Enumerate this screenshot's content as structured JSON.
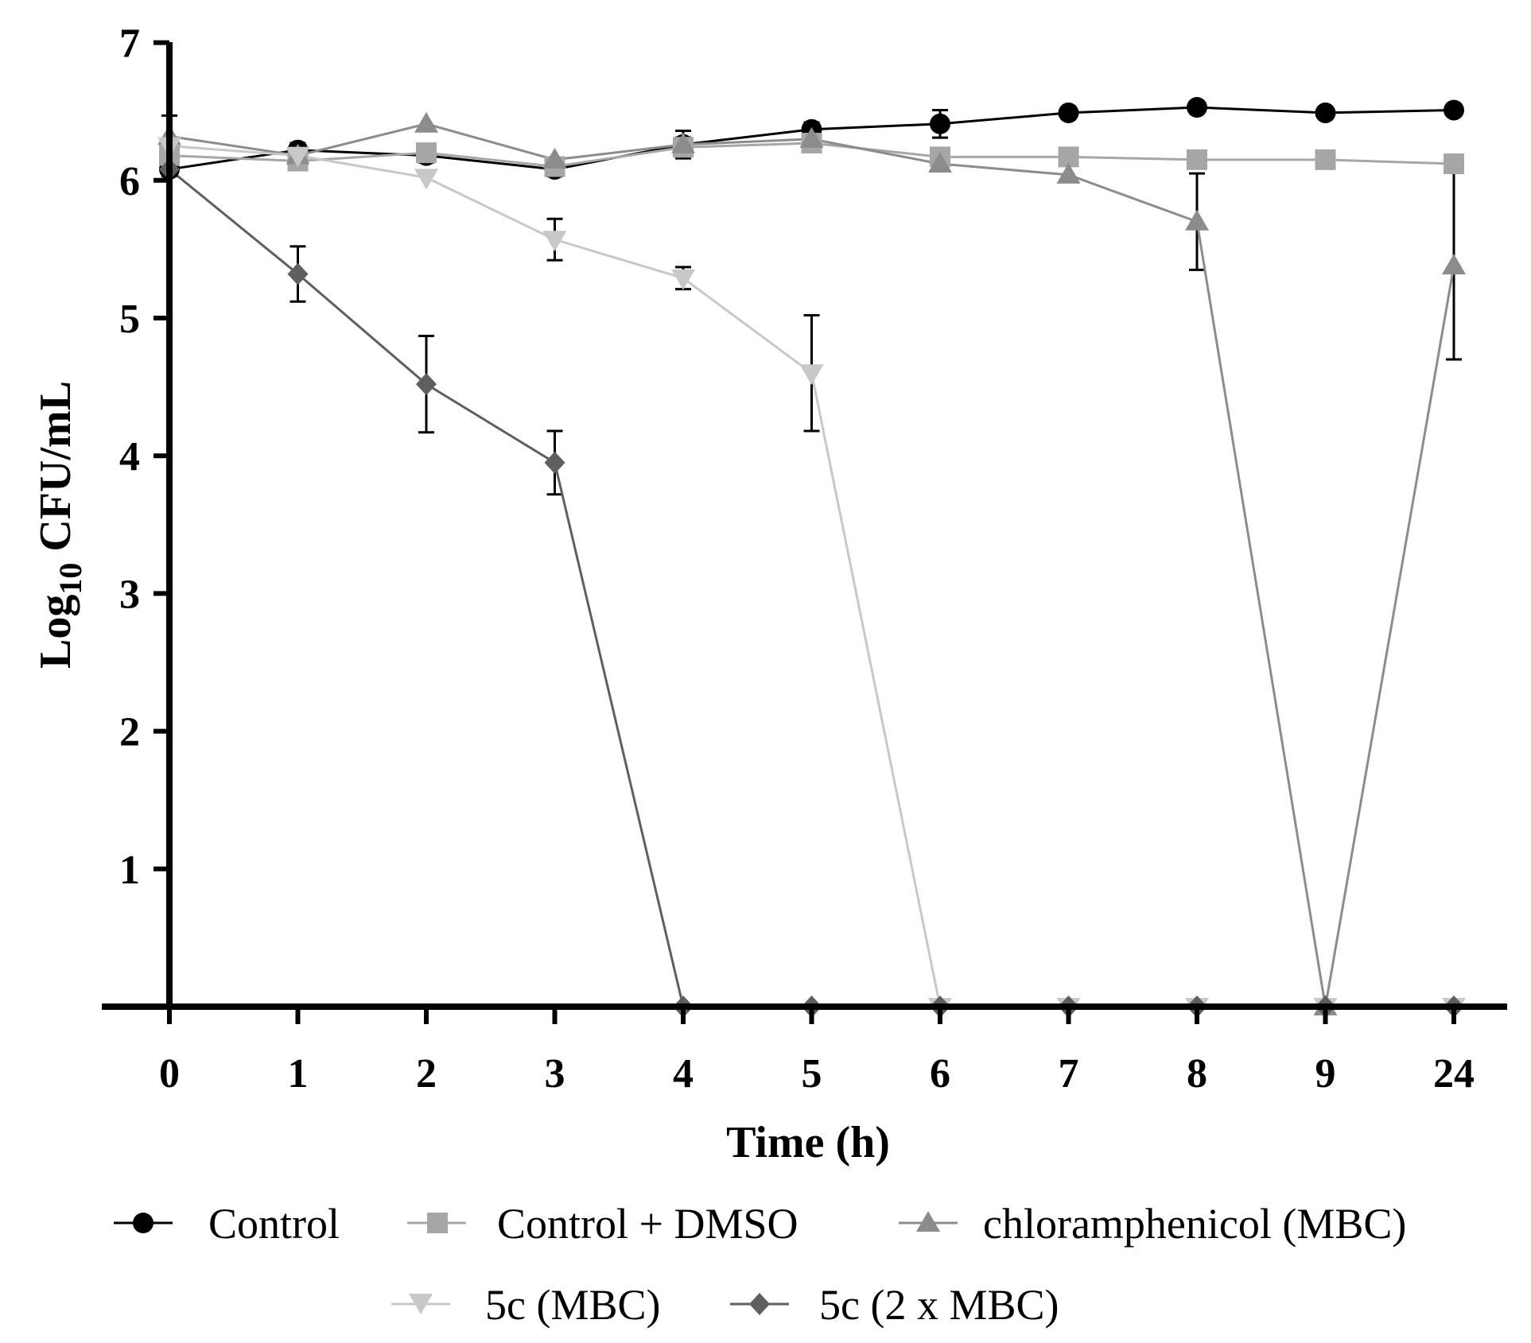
{
  "chart_data": {
    "type": "line",
    "title": "",
    "xlabel": "Time (h)",
    "ylabel": {
      "prefix": "Log",
      "subscript": "10",
      "suffix": " CFU/mL"
    },
    "x_categories": [
      "0",
      "1",
      "2",
      "3",
      "4",
      "5",
      "6",
      "7",
      "8",
      "9",
      "24"
    ],
    "y_ticks": [
      "1",
      "2",
      "3",
      "4",
      "5",
      "6",
      "7"
    ],
    "ylim": [
      0,
      7
    ],
    "grid": false,
    "legend_position": "bottom",
    "series": [
      {
        "name": "Control",
        "marker": "circle",
        "color": "#000000",
        "values": [
          6.08,
          6.22,
          6.18,
          6.08,
          6.26,
          6.37,
          6.41,
          6.49,
          6.53,
          6.49,
          6.51
        ],
        "errors": [
          0.05,
          0.05,
          0.05,
          0.05,
          0.1,
          0.05,
          0.1,
          0.04,
          0.03,
          0.03,
          0.03
        ]
      },
      {
        "name": "Control + DMSO",
        "marker": "square",
        "color": "#a6a6a6",
        "values": [
          6.18,
          6.14,
          6.2,
          6.1,
          6.24,
          6.27,
          6.17,
          6.17,
          6.15,
          6.15,
          6.12
        ],
        "errors": [
          0,
          0,
          0,
          0,
          0,
          0,
          0,
          0,
          0,
          0,
          0
        ]
      },
      {
        "name": "chloramphenicol (MBC)",
        "marker": "triangle-up",
        "color": "#8c8c8c",
        "values": [
          6.32,
          6.18,
          6.41,
          6.15,
          6.26,
          6.3,
          6.12,
          6.04,
          5.7,
          0,
          5.38
        ],
        "errors": [
          0.15,
          0,
          0,
          0,
          0.05,
          0,
          0.05,
          0,
          0.35,
          0,
          0.68
        ]
      },
      {
        "name": "5c (MBC)",
        "marker": "triangle-down",
        "color": "#c8c8c8",
        "values": [
          6.25,
          6.18,
          6.02,
          5.57,
          5.29,
          4.6,
          0,
          0,
          0,
          0,
          0
        ],
        "errors": [
          0,
          0,
          0,
          0.15,
          0.08,
          0.42,
          0,
          0,
          0,
          0,
          0
        ]
      },
      {
        "name": "5c (2 x MBC)",
        "marker": "diamond",
        "color": "#5f5f5f",
        "values": [
          6.08,
          5.32,
          4.52,
          3.95,
          0,
          0,
          0,
          0,
          0,
          0,
          0
        ],
        "errors": [
          0,
          0.2,
          0.35,
          0.23,
          0,
          0,
          0,
          0,
          0,
          0,
          0
        ]
      }
    ]
  }
}
